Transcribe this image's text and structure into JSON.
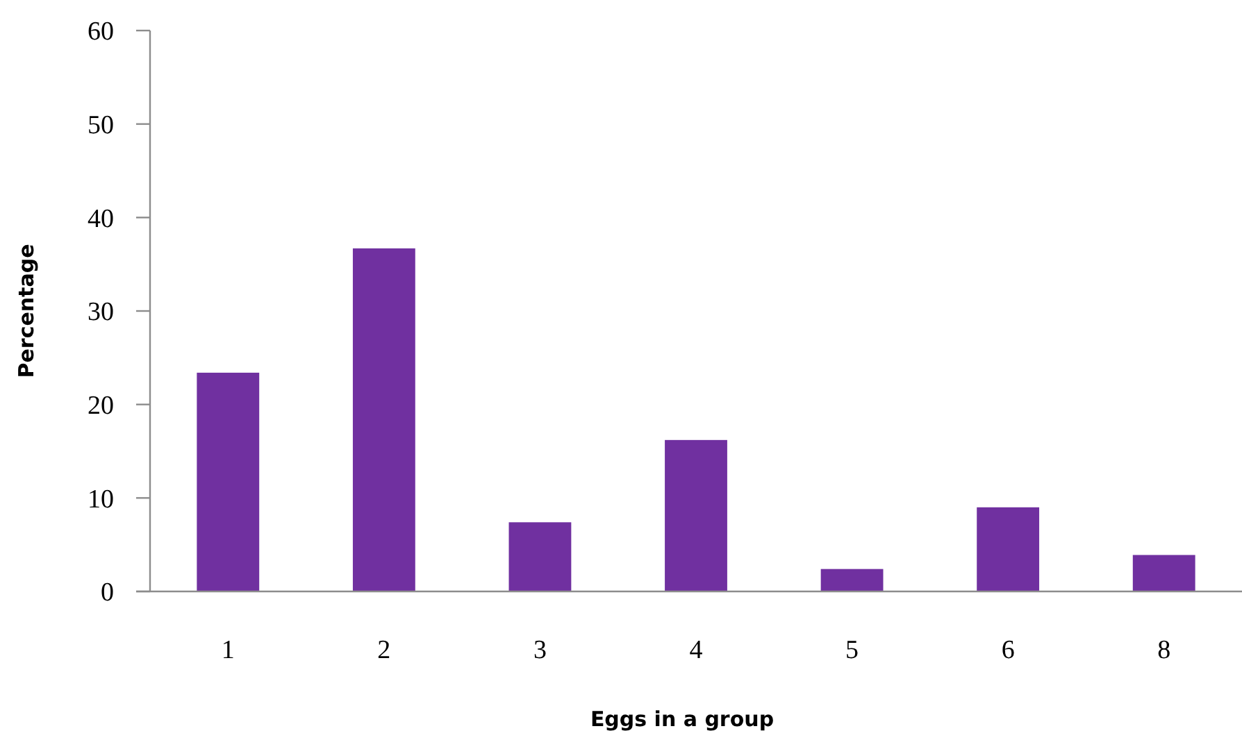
{
  "chart_data": {
    "type": "bar",
    "categories": [
      "1",
      "2",
      "3",
      "4",
      "5",
      "6",
      "8"
    ],
    "values": [
      23.4,
      36.7,
      7.4,
      16.2,
      2.4,
      9.0,
      3.9
    ],
    "color": "#7030a0",
    "xlabel": "Eggs in a group",
    "ylabel": "Percentage",
    "ylim": [
      0,
      60
    ],
    "yticks": [
      0,
      10,
      20,
      30,
      40,
      50,
      60
    ],
    "grid": false
  }
}
